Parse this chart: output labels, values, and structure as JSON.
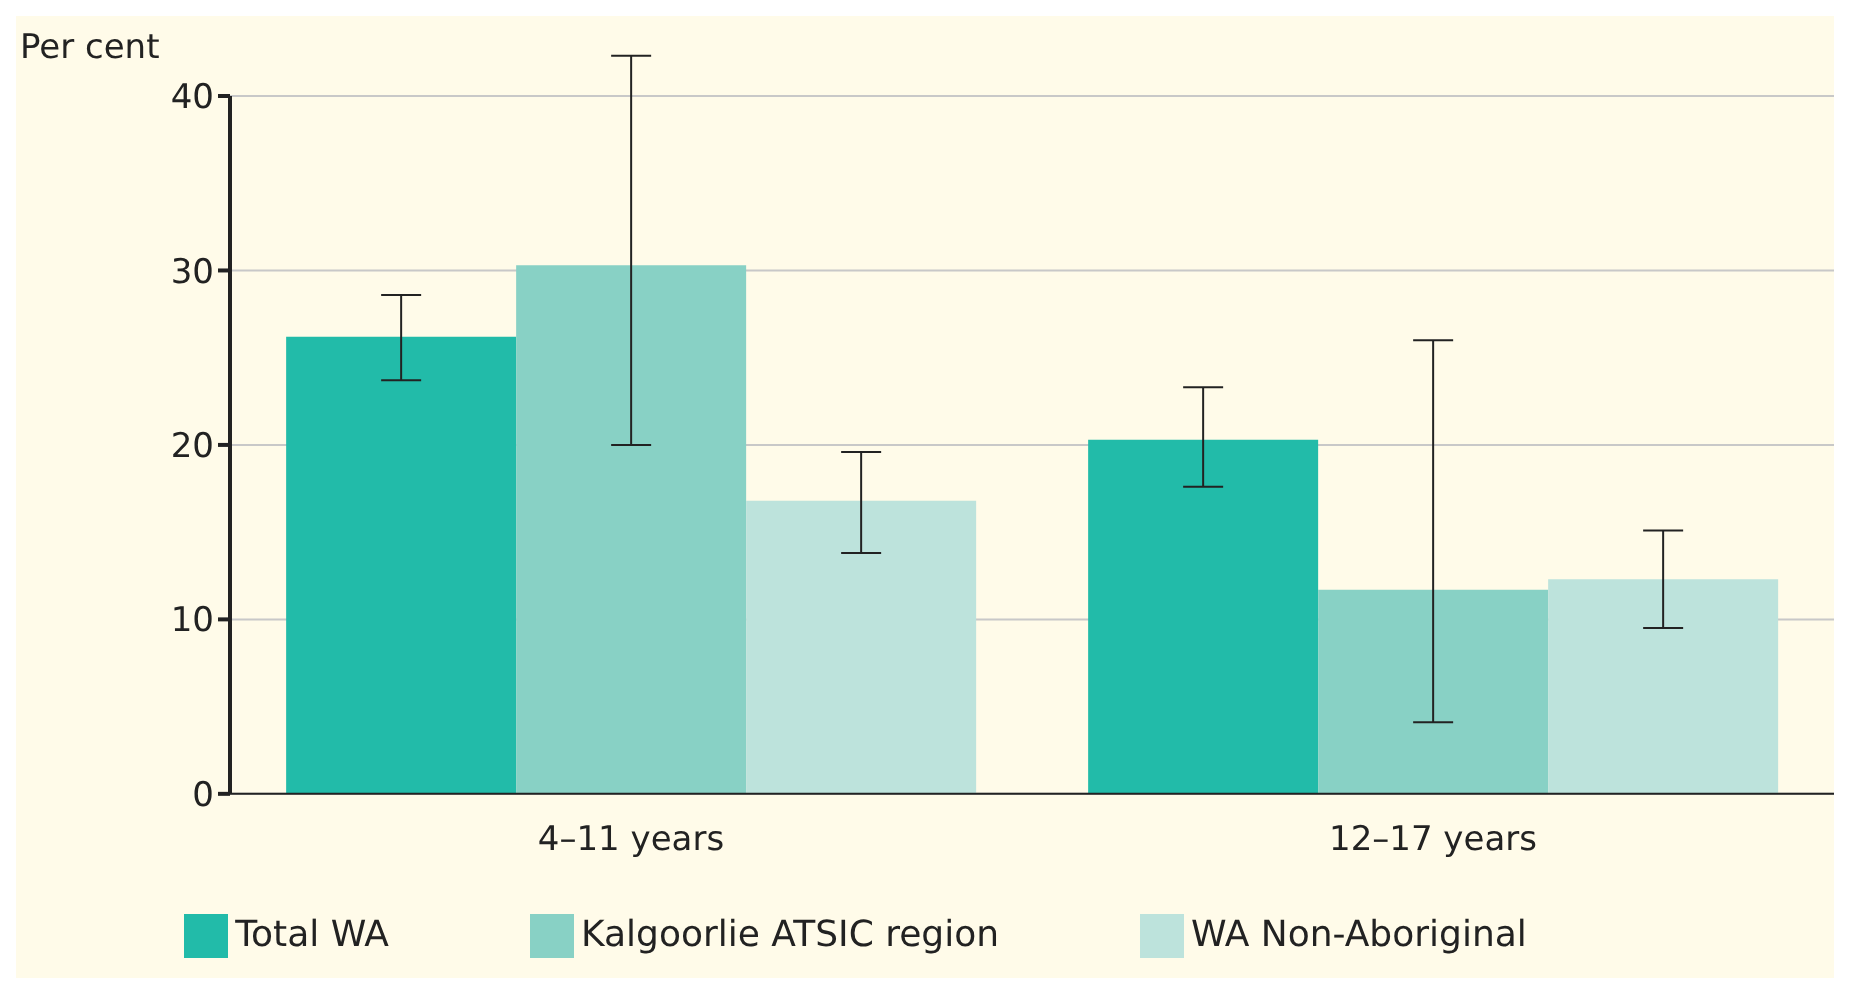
{
  "chart_data": {
    "type": "bar",
    "ylabel": "Per cent",
    "categories": [
      "4–11 years",
      "12–17 years"
    ],
    "series": [
      {
        "name": "Total WA",
        "color": "#22bba9",
        "values": [
          26.2,
          20.3
        ],
        "errors": [
          [
            23.7,
            28.6
          ],
          [
            17.6,
            23.3
          ]
        ]
      },
      {
        "name": "Kalgoorlie ATSIC region",
        "color": "#88d1c5",
        "values": [
          30.3,
          11.7
        ],
        "errors": [
          [
            20.0,
            42.3
          ],
          [
            4.1,
            26.0
          ]
        ]
      },
      {
        "name": "WA Non-Aboriginal",
        "color": "#bde3dc",
        "values": [
          16.8,
          12.3
        ],
        "errors": [
          [
            13.8,
            19.6
          ],
          [
            9.5,
            15.1
          ]
        ]
      }
    ],
    "ylim": [
      0,
      40
    ],
    "yticks": [
      0,
      10,
      20,
      30,
      40
    ],
    "grid": "y",
    "legend": "bottom"
  }
}
